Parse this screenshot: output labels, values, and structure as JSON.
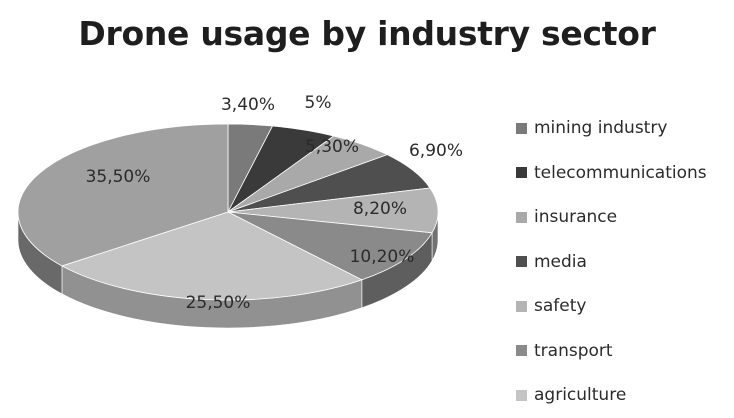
{
  "chart_data": {
    "type": "pie",
    "title": "Drone usage by industry sector",
    "legend_position": "right",
    "style": "3d",
    "slices": [
      {
        "name": "mining industry",
        "value": 3.4,
        "label": "3,40%",
        "color": "#7a7a7a"
      },
      {
        "name": "telecommunications",
        "value": 5.0,
        "label": "5%",
        "color": "#3a3a3a"
      },
      {
        "name": "insurance",
        "value": 5.3,
        "label": "5,30%",
        "color": "#a9a9a9"
      },
      {
        "name": "media",
        "value": 6.9,
        "label": "6,90%",
        "color": "#4f4f4f"
      },
      {
        "name": "safety",
        "value": 8.2,
        "label": "8,20%",
        "color": "#b4b4b4"
      },
      {
        "name": "transport",
        "value": 10.2,
        "label": "10,20%",
        "color": "#8a8a8a"
      },
      {
        "name": "agriculture",
        "value": 25.5,
        "label": "25,50%",
        "color": "#c4c4c4"
      },
      {
        "name": "",
        "value": 35.5,
        "label": "35,50%",
        "color": "#a0a0a0"
      }
    ]
  }
}
